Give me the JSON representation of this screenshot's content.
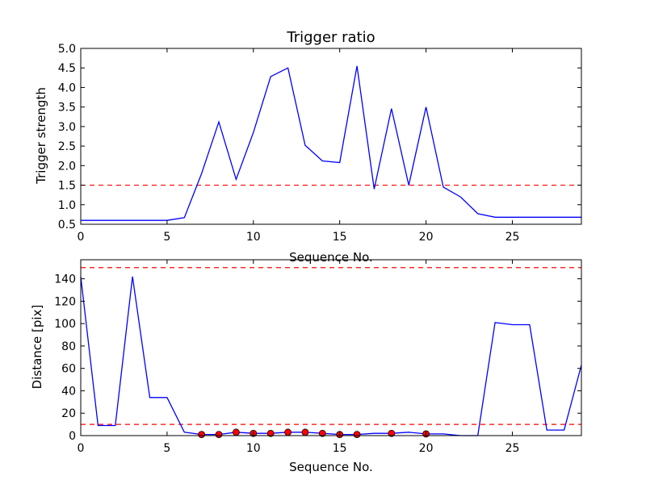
{
  "chart_data": [
    {
      "type": "line",
      "title": "Trigger ratio",
      "xlabel": "Sequence No.",
      "ylabel": "Trigger strength",
      "xlim": [
        0,
        29
      ],
      "ylim": [
        0.5,
        5.0
      ],
      "x_ticks": [
        0,
        5,
        10,
        15,
        20,
        25
      ],
      "y_ticks": [
        0.5,
        1.0,
        1.5,
        2.0,
        2.5,
        3.0,
        3.5,
        4.0,
        4.5,
        5.0
      ],
      "tick_decimals": 1,
      "line_color": "#0000ff",
      "threshold_color": "#ff0000",
      "grid": false,
      "series": [
        {
          "x": [
            0,
            1,
            2,
            3,
            4,
            5,
            6,
            7,
            8,
            9,
            10,
            11,
            12,
            13,
            14,
            15,
            16,
            17,
            18,
            19,
            20,
            21,
            22,
            23,
            24,
            25,
            26,
            27,
            28,
            29
          ],
          "values": [
            0.6,
            0.6,
            0.6,
            0.6,
            0.6,
            0.6,
            0.67,
            1.8,
            3.12,
            1.65,
            2.85,
            4.28,
            4.5,
            2.52,
            2.12,
            2.08,
            4.55,
            1.4,
            3.46,
            1.5,
            3.5,
            1.45,
            1.2,
            0.77,
            0.68,
            0.68,
            0.68,
            0.68,
            0.68,
            0.68
          ]
        }
      ],
      "threshold_lines": [
        1.5
      ]
    },
    {
      "type": "line",
      "title": "",
      "xlabel": "Sequence No.",
      "ylabel": "Distance [pix]",
      "xlim": [
        0,
        29
      ],
      "ylim": [
        0,
        157
      ],
      "x_ticks": [
        0,
        5,
        10,
        15,
        20,
        25
      ],
      "y_ticks": [
        0,
        20,
        40,
        60,
        80,
        100,
        120,
        140
      ],
      "tick_decimals": 0,
      "line_color": "#0000ff",
      "threshold_color": "#ff0000",
      "marker_color": "#ff0000",
      "grid": false,
      "series": [
        {
          "x": [
            0,
            1,
            2,
            3,
            4,
            5,
            6,
            7,
            8,
            9,
            10,
            11,
            12,
            13,
            14,
            15,
            16,
            17,
            18,
            19,
            20,
            21,
            22,
            23,
            24,
            25,
            26,
            27,
            28,
            29
          ],
          "values": [
            142,
            9,
            9,
            142,
            34,
            34,
            3,
            1,
            1,
            3,
            2,
            2,
            3,
            3,
            2,
            1,
            1,
            2,
            2,
            3,
            1.5,
            1.5,
            0,
            0,
            101,
            99,
            99,
            5,
            5,
            63
          ]
        }
      ],
      "markers": {
        "x": [
          7,
          8,
          9,
          10,
          11,
          12,
          13,
          14,
          15,
          16,
          18,
          20
        ],
        "y": [
          1,
          1,
          3,
          2,
          2,
          3,
          3,
          2,
          1,
          1,
          2,
          1.5
        ]
      },
      "threshold_lines": [
        10,
        150
      ]
    }
  ]
}
